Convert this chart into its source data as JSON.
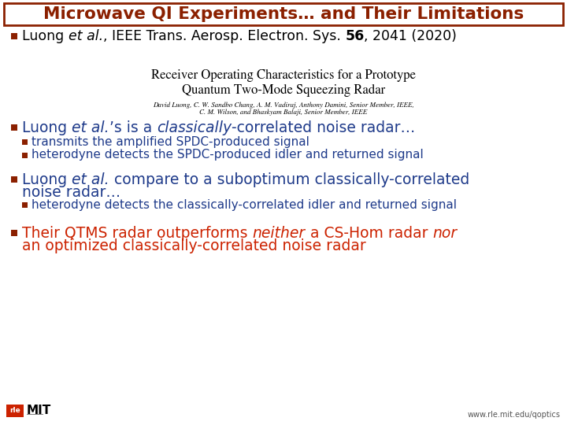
{
  "title": "Microwave QI Experiments… and Their Limitations",
  "title_color": "#8B2000",
  "title_border": "#8B2000",
  "bullet_color": "#8B2000",
  "blue_color": "#1E3A8A",
  "red_color": "#CC2200",
  "white_bg": "#FFFFFF",
  "paper_title_line1": "Receiver Operating Characteristics for a Prototype",
  "paper_title_line2": "Quantum Two-Mode Squeezing Radar",
  "paper_authors_line1": "David Luong, C. W. Sandbo Chang, A. M. Vadiraj, Anthony Damini, Senior Member, IEEE,",
  "paper_authors_line2": "C. M. Wilson, and Bhaskyam Balaji, Senior Member, IEEE",
  "sub1": "transmits the amplified SPDC-produced signal",
  "sub2": "heterodyne detects the SPDC-produced idler and returned signal",
  "sub3": "heterodyne detects the classically-correlated idler and returned signal",
  "footer_url": "www.rle.mit.edu/qoptics"
}
